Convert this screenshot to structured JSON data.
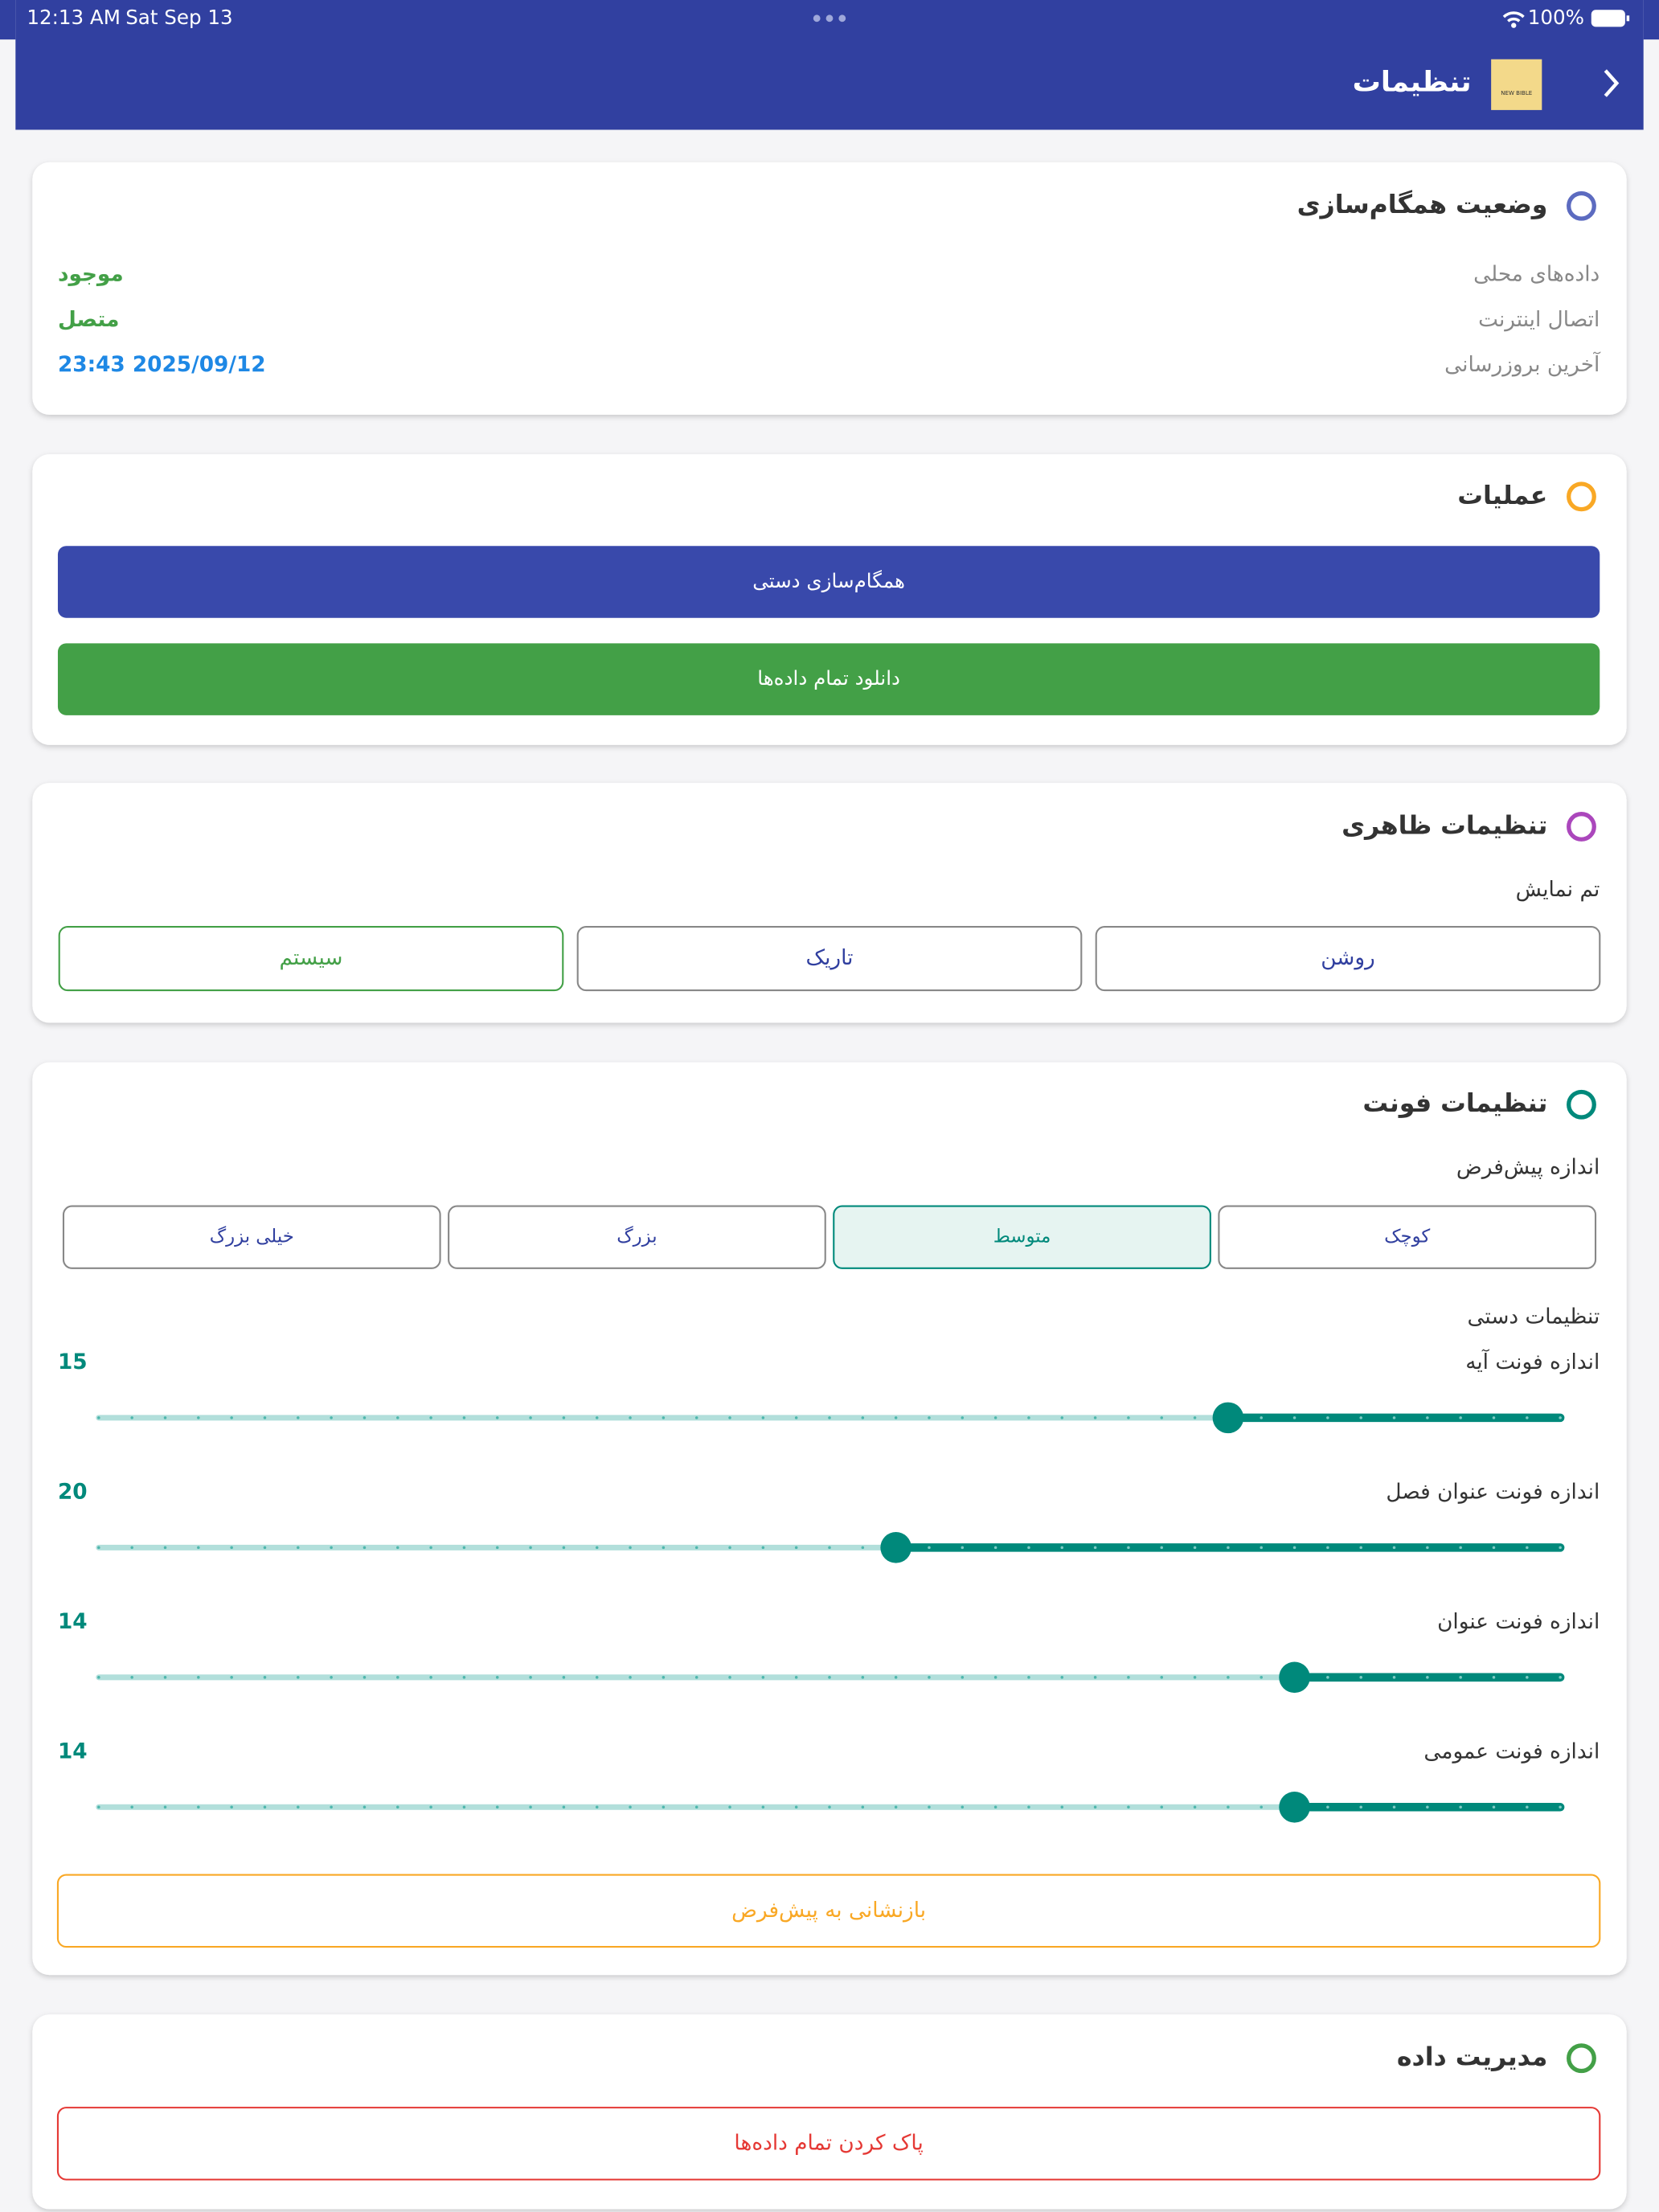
{
  "status_bar": {
    "time": "12:13 AM",
    "date": "Sat Sep 13",
    "battery": "100%"
  },
  "header": {
    "title": "تنظیمات",
    "logo_text": "NEW BIBLE"
  },
  "sync": {
    "title": "وضعیت همگام‌سازی",
    "rows": [
      {
        "label": "داده‌های محلی",
        "value": "موجود"
      },
      {
        "label": "اتصال اینترنت",
        "value": "متصل"
      },
      {
        "label": "آخرین بروزرسانی",
        "value": "23:43 2025/09/12"
      }
    ]
  },
  "operations": {
    "title": "عملیات",
    "buttons": [
      "همگام‌سازی دستی",
      "دانلود تمام داده‌ها"
    ]
  },
  "appearance": {
    "title": "تنظیمات ظاهری",
    "subtitle": "تم نمایش",
    "options": [
      "روشن",
      "تاریک",
      "سیستم"
    ],
    "selected": 2
  },
  "font": {
    "title": "تنظیمات فونت",
    "subtitle": "اندازه پیش‌فرض",
    "sizes": [
      "کوچک",
      "متوسط",
      "بزرگ",
      "خیلی بزرگ"
    ],
    "selected": 1,
    "manual": "تنظیمات دستی",
    "range": [
      10,
      32
    ],
    "sliders": [
      {
        "label": "اندازه فونت آیه",
        "value": 15
      },
      {
        "label": "اندازه فونت عنوان فصل",
        "value": 20
      },
      {
        "label": "اندازه فونت عنوان",
        "value": 14
      },
      {
        "label": "اندازه فونت عمومی",
        "value": 14
      }
    ],
    "reset": "بازنشانی به پیش‌فرض"
  },
  "data_management": {
    "title": "مدیریت داده",
    "button": "پاک کردن تمام داده‌ها"
  }
}
